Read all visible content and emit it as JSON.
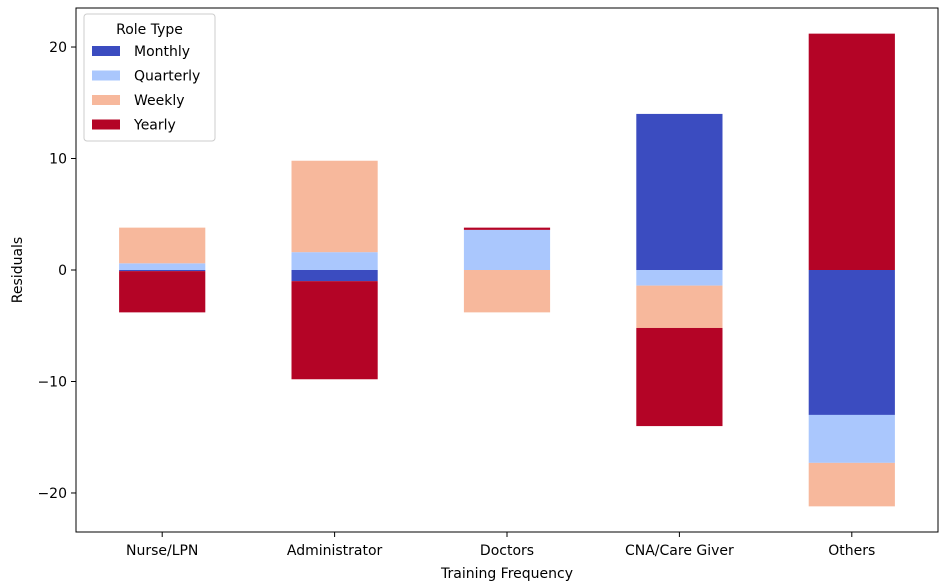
{
  "chart_data": {
    "type": "bar",
    "stacked": "diverging",
    "categories": [
      "Nurse/LPN",
      "Administrator",
      "Doctors",
      "CNA/Care Giver",
      "Others"
    ],
    "series": [
      {
        "name": "Monthly",
        "color": "#3b4cc0",
        "values": [
          -0.1,
          -1.0,
          0.0,
          14.0,
          -13.0
        ]
      },
      {
        "name": "Quarterly",
        "color": "#aac7fd",
        "values": [
          0.6,
          1.6,
          3.6,
          -1.4,
          -4.3
        ]
      },
      {
        "name": "Weekly",
        "color": "#f7b89c",
        "values": [
          3.2,
          8.2,
          -3.8,
          -3.8,
          -3.9
        ]
      },
      {
        "name": "Yearly",
        "color": "#b40426",
        "values": [
          -3.7,
          -8.8,
          0.2,
          -8.8,
          21.2
        ]
      }
    ],
    "xlabel": "Training Frequency",
    "ylabel": "Residuals",
    "ylim": [
      -23.5,
      23.5
    ],
    "yticks": [
      -20,
      -10,
      0,
      10,
      20
    ],
    "ytick_labels": [
      "−20",
      "−10",
      "0",
      "10",
      "20"
    ],
    "legend": {
      "title": "Role Type",
      "position": "top-left"
    },
    "grid": false
  }
}
